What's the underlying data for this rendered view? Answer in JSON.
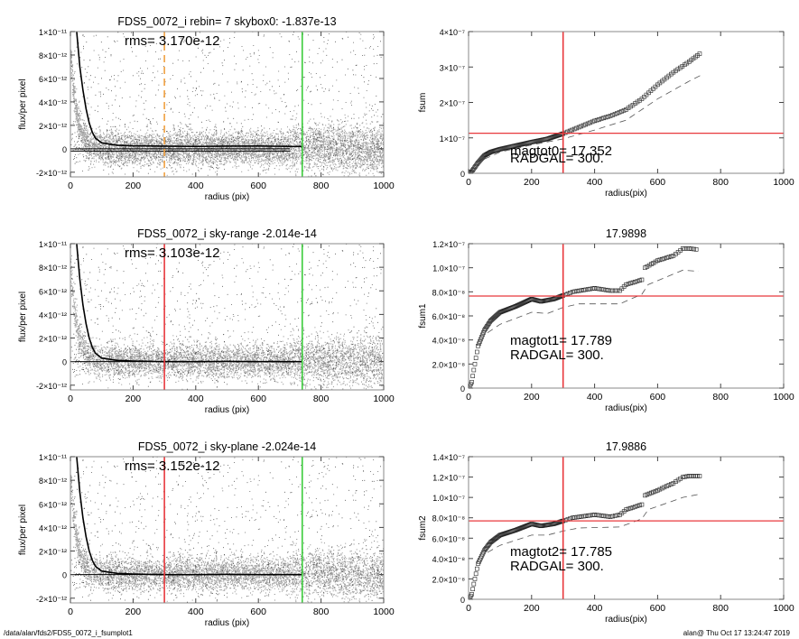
{
  "footer": {
    "path": "/data/alan/fds2/FDS5_0072_i_fsumplot1",
    "user_time": "alan@  Thu Oct 17 13:24:47 2019"
  },
  "colors": {
    "scatter": "#a0a0a0",
    "profile": "#000000",
    "marker_red": "#e8383c",
    "marker_green": "#3ccc3c",
    "marker_orange": "#f0a040"
  },
  "chart_data": [
    {
      "type": "scatter",
      "title": "FDS5_0072_i rebin= 7    skybox0: -1.837e-13",
      "annotation": [
        "rms= 3.170e-12"
      ],
      "xlabel": "radius (pix)",
      "ylabel": "flux/per pixel",
      "xlim": [
        0,
        1000
      ],
      "ylim": [
        -2.4e-12,
        1e-11
      ],
      "xticks": [
        0,
        200,
        400,
        600,
        800,
        1000
      ],
      "yticks": [
        -2e-12,
        0,
        2e-12,
        4e-12,
        6e-12,
        8e-12,
        1e-11
      ],
      "ytick_labels": [
        "-2×10⁻¹²",
        "0",
        "2×10⁻¹²",
        "4×10⁻¹²",
        "6×10⁻¹²",
        "8×10⁻¹²",
        "1×10⁻¹¹"
      ],
      "profile": {
        "x": [
          20,
          30,
          40,
          50,
          60,
          70,
          80,
          100,
          150,
          200,
          300,
          400,
          500,
          600,
          700,
          740
        ],
        "y": [
          1e-11,
          7e-12,
          5e-12,
          3.4e-12,
          2.2e-12,
          1.4e-12,
          9e-13,
          5e-13,
          3e-13,
          2.5e-13,
          2.2e-13,
          2e-13,
          2.2e-13,
          2.3e-13,
          2e-13,
          2e-13
        ]
      },
      "hlines": [
        {
          "y": 0,
          "x": [
            0,
            700
          ],
          "color": "#000000"
        },
        {
          "y": -2e-13,
          "x": [
            0,
            700
          ],
          "color": "#000000"
        }
      ],
      "vlines": [
        {
          "x": 300,
          "color": "#f0a040",
          "dashed": true
        },
        {
          "x": 740,
          "color": "#3ccc3c",
          "dashed": false
        }
      ]
    },
    {
      "type": "line",
      "title": "",
      "annotation": [
        "magtot0=  17.352",
        "RADGAL=    300."
      ],
      "xlabel": "radius(pix)",
      "ylabel": "fsum",
      "xlim": [
        0,
        1000
      ],
      "ylim": [
        0,
        4e-07
      ],
      "xticks": [
        0,
        200,
        400,
        600,
        800,
        1000
      ],
      "yticks": [
        0,
        1e-07,
        2e-07,
        3e-07,
        4e-07
      ],
      "ytick_labels": [
        "0",
        "1×10⁻⁷",
        "2×10⁻⁷",
        "3×10⁻⁷",
        "4×10⁻⁷"
      ],
      "series": [
        {
          "style": "squares",
          "x": [
            0,
            10,
            30,
            50,
            70,
            100,
            150,
            200,
            250,
            300,
            350,
            400,
            450,
            500,
            550,
            600,
            650,
            700,
            740
          ],
          "y": [
            0,
            5e-09,
            3e-08,
            5e-08,
            6e-08,
            6.8e-08,
            7.8e-08,
            8.8e-08,
            9.7e-08,
            1.12e-07,
            1.3e-07,
            1.48e-07,
            1.62e-07,
            1.8e-07,
            2.1e-07,
            2.5e-07,
            2.85e-07,
            3.15e-07,
            3.42e-07
          ]
        },
        {
          "style": "dashed",
          "x": [
            50,
            100,
            200,
            300,
            400,
            500,
            600,
            700,
            740
          ],
          "y": [
            4e-08,
            6e-08,
            8e-08,
            9.7e-08,
            1.22e-07,
            1.5e-07,
            2.1e-07,
            2.6e-07,
            2.78e-07
          ]
        }
      ],
      "hlines": [
        {
          "y": 1.13e-07,
          "color": "#e8383c"
        }
      ],
      "vlines": [
        {
          "x": 300,
          "color": "#e8383c",
          "dashed": false
        }
      ]
    },
    {
      "type": "scatter",
      "title": "FDS5_0072_i sky-range -2.014e-14",
      "annotation": [
        "rms= 3.103e-12"
      ],
      "xlabel": "radius (pix)",
      "ylabel": "flux/per pixel",
      "xlim": [
        0,
        1000
      ],
      "ylim": [
        -2.4e-12,
        1e-11
      ],
      "xticks": [
        0,
        200,
        400,
        600,
        800,
        1000
      ],
      "yticks": [
        -2e-12,
        0,
        2e-12,
        4e-12,
        6e-12,
        8e-12,
        1e-11
      ],
      "ytick_labels": [
        "-2×10⁻¹²",
        "0",
        "2×10⁻¹²",
        "4×10⁻¹²",
        "6×10⁻¹²",
        "8×10⁻¹²",
        "1×10⁻¹¹"
      ],
      "profile": {
        "x": [
          20,
          30,
          40,
          50,
          60,
          70,
          80,
          100,
          150,
          200,
          300,
          400,
          500,
          600,
          700,
          740
        ],
        "y": [
          1e-11,
          7e-12,
          4.8e-12,
          3.2e-12,
          2e-12,
          1.2e-12,
          7e-13,
          3e-13,
          1e-13,
          5e-14,
          0,
          0,
          2e-14,
          0,
          0,
          0
        ]
      },
      "hlines": [
        {
          "y": 0,
          "x": [
            0,
            740
          ],
          "color": "#000000"
        }
      ],
      "vlines": [
        {
          "x": 300,
          "color": "#e8383c",
          "dashed": false
        },
        {
          "x": 740,
          "color": "#3ccc3c",
          "dashed": false
        }
      ]
    },
    {
      "type": "line",
      "title": "17.9898",
      "annotation": [
        "magtot1=  17.789",
        "RADGAL=    300."
      ],
      "xlabel": "radius(pix)",
      "ylabel": "fsum1",
      "xlim": [
        0,
        1000
      ],
      "ylim": [
        0,
        1.2e-07
      ],
      "xticks": [
        0,
        200,
        400,
        600,
        800,
        1000
      ],
      "yticks": [
        0,
        2e-08,
        4e-08,
        6e-08,
        8e-08,
        1e-07,
        1.2e-07
      ],
      "ytick_labels": [
        "0",
        "2.0×10⁻⁸",
        "4.0×10⁻⁸",
        "6.0×10⁻⁸",
        "8.0×10⁻⁸",
        "1.0×10⁻⁷",
        "1.2×10⁻⁷"
      ],
      "series": [
        {
          "style": "squares",
          "x": [
            0,
            10,
            20,
            30,
            50,
            70,
            100,
            150,
            200,
            230,
            270,
            300,
            330,
            400,
            450,
            480,
            500,
            550,
            560,
            600,
            650,
            680,
            700,
            730
          ],
          "y": [
            0,
            5e-09,
            2e-08,
            3.5e-08,
            4.8e-08,
            5.6e-08,
            6.3e-08,
            6.8e-08,
            7.4e-08,
            7.2e-08,
            7.4e-08,
            7.7e-08,
            8e-08,
            8.3e-08,
            8.1e-08,
            8.1e-08,
            8.6e-08,
            9e-08,
            1e-07,
            1.06e-07,
            1.1e-07,
            1.16e-07,
            1.16e-07,
            1.15e-07
          ]
        },
        {
          "style": "dashed",
          "x": [
            60,
            100,
            200,
            250,
            300,
            350,
            480,
            550,
            570,
            680,
            730
          ],
          "y": [
            4.6e-08,
            5.3e-08,
            6.3e-08,
            6.2e-08,
            6.7e-08,
            7e-08,
            7e-08,
            7.8e-08,
            8.6e-08,
            9.8e-08,
            9.7e-08
          ]
        }
      ],
      "hlines": [
        {
          "y": 7.65e-08,
          "color": "#e8383c"
        }
      ],
      "vlines": [
        {
          "x": 300,
          "color": "#e8383c",
          "dashed": false
        }
      ]
    },
    {
      "type": "scatter",
      "title": "FDS5_0072_i sky-plane -2.024e-14",
      "annotation": [
        "rms= 3.152e-12"
      ],
      "xlabel": "radius (pix)",
      "ylabel": "flux/per pixel",
      "xlim": [
        0,
        1000
      ],
      "ylim": [
        -2.4e-12,
        1e-11
      ],
      "xticks": [
        0,
        200,
        400,
        600,
        800,
        1000
      ],
      "yticks": [
        -2e-12,
        0,
        2e-12,
        4e-12,
        6e-12,
        8e-12,
        1e-11
      ],
      "ytick_labels": [
        "-2×10⁻¹²",
        "0",
        "2×10⁻¹²",
        "4×10⁻¹²",
        "6×10⁻¹²",
        "8×10⁻¹²",
        "1×10⁻¹¹"
      ],
      "profile": {
        "x": [
          20,
          30,
          40,
          50,
          60,
          70,
          80,
          100,
          150,
          200,
          300,
          400,
          500,
          600,
          700,
          740
        ],
        "y": [
          1e-11,
          7e-12,
          4.8e-12,
          3.2e-12,
          2e-12,
          1.2e-12,
          7e-13,
          3e-13,
          1e-13,
          5e-14,
          0,
          0,
          2e-14,
          0,
          0,
          0
        ]
      },
      "hlines": [
        {
          "y": 0,
          "x": [
            0,
            740
          ],
          "color": "#000000"
        }
      ],
      "vlines": [
        {
          "x": 300,
          "color": "#e8383c",
          "dashed": false
        },
        {
          "x": 740,
          "color": "#3ccc3c",
          "dashed": false
        }
      ]
    },
    {
      "type": "line",
      "title": "17.9886",
      "annotation": [
        "magtot2=  17.785",
        "RADGAL=    300."
      ],
      "xlabel": "radius(pix)",
      "ylabel": "fsum2",
      "xlim": [
        0,
        1000
      ],
      "ylim": [
        0,
        1.4e-07
      ],
      "xticks": [
        0,
        200,
        400,
        600,
        800,
        1000
      ],
      "yticks": [
        0,
        2e-08,
        4e-08,
        6e-08,
        8e-08,
        1e-07,
        1.2e-07,
        1.4e-07
      ],
      "ytick_labels": [
        "0",
        "2.0×10⁻⁸",
        "4.0×10⁻⁸",
        "6.0×10⁻⁸",
        "8.0×10⁻⁸",
        "1.0×10⁻⁷",
        "1.2×10⁻⁷",
        "1.4×10⁻⁷"
      ],
      "series": [
        {
          "style": "squares",
          "x": [
            0,
            10,
            20,
            30,
            50,
            70,
            100,
            150,
            200,
            230,
            270,
            300,
            330,
            400,
            450,
            480,
            500,
            550,
            560,
            600,
            650,
            680,
            700,
            740
          ],
          "y": [
            0,
            5e-09,
            2e-08,
            3.5e-08,
            4.8e-08,
            5.6e-08,
            6.3e-08,
            6.8e-08,
            7.4e-08,
            7.2e-08,
            7.4e-08,
            7.7e-08,
            8e-08,
            8.3e-08,
            8.1e-08,
            8.3e-08,
            8.8e-08,
            9.3e-08,
            1.02e-07,
            1.07e-07,
            1.14e-07,
            1.2e-07,
            1.21e-07,
            1.21e-07
          ]
        },
        {
          "style": "dashed",
          "x": [
            60,
            100,
            200,
            250,
            300,
            350,
            480,
            550,
            570,
            680,
            730
          ],
          "y": [
            4.6e-08,
            5.3e-08,
            6.3e-08,
            6.3e-08,
            6.7e-08,
            7e-08,
            7.1e-08,
            7.9e-08,
            8.8e-08,
            1e-07,
            1.03e-07
          ]
        }
      ],
      "hlines": [
        {
          "y": 7.7e-08,
          "color": "#e8383c"
        }
      ],
      "vlines": [
        {
          "x": 300,
          "color": "#e8383c",
          "dashed": false
        }
      ]
    }
  ]
}
